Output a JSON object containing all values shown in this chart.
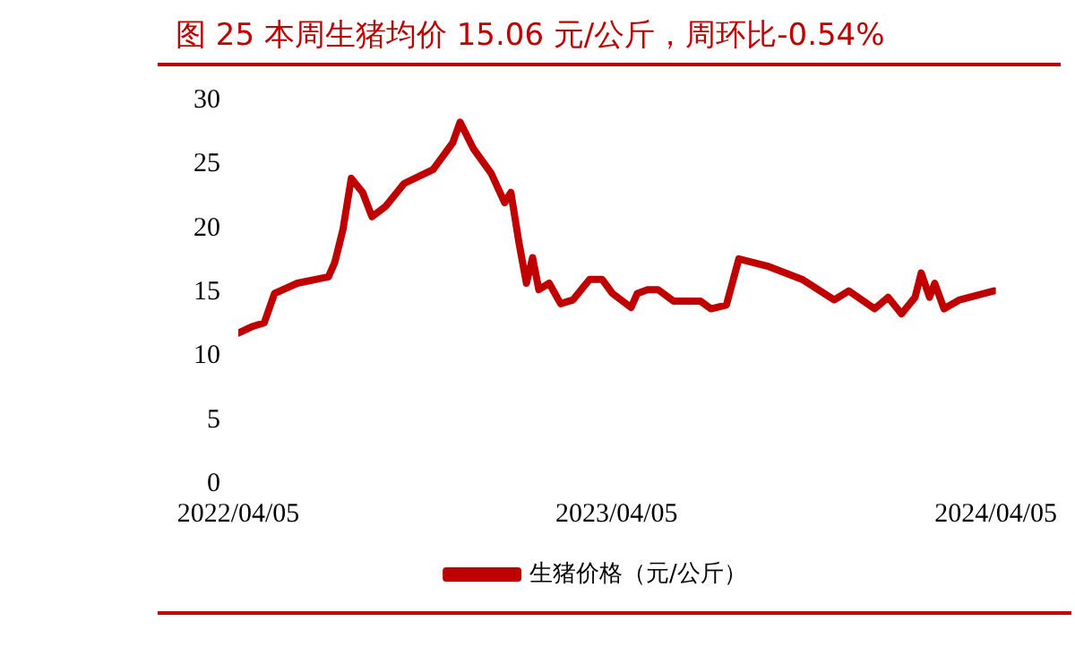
{
  "chart_data": {
    "type": "line",
    "title": "图 25  本周生猪均价 15.06 元/公斤，周环比-0.54%",
    "x": [
      "2022-04-05",
      "2022-04-18",
      "2022-04-30",
      "2022-05-10",
      "2022-06-01",
      "2022-07-01",
      "2022-07-07",
      "2022-07-15",
      "2022-07-23",
      "2022-08-03",
      "2022-08-12",
      "2022-08-25",
      "2022-09-12",
      "2022-10-10",
      "2022-10-29",
      "2022-11-05",
      "2022-11-18",
      "2022-12-05",
      "2022-12-18",
      "2022-12-24",
      "2023-01-01",
      "2023-01-08",
      "2023-01-14",
      "2023-01-20",
      "2023-01-30",
      "2023-02-10",
      "2023-02-22",
      "2023-03-10",
      "2023-03-22",
      "2023-04-01",
      "2023-04-19",
      "2023-04-25",
      "2023-05-05",
      "2023-05-15",
      "2023-05-30",
      "2023-06-25",
      "2023-07-05",
      "2023-07-20",
      "2023-08-01",
      "2023-08-30",
      "2023-10-01",
      "2023-11-01",
      "2023-11-15",
      "2023-12-10",
      "2023-12-23",
      "2024-01-05",
      "2024-01-18",
      "2024-01-24",
      "2024-02-01",
      "2024-02-06",
      "2024-02-15",
      "2024-03-01",
      "2024-04-03"
    ],
    "series": [
      {
        "name": "生猪价格（元/公斤）",
        "color": "#c00000",
        "values": [
          11.8,
          12.3,
          12.6,
          14.9,
          15.7,
          16.2,
          17.3,
          19.9,
          23.9,
          22.8,
          20.9,
          21.7,
          23.5,
          24.6,
          26.7,
          28.3,
          26.2,
          24.3,
          22.0,
          22.8,
          18.8,
          15.7,
          17.7,
          15.2,
          15.7,
          14.1,
          14.4,
          16.0,
          16.0,
          14.9,
          13.8,
          14.9,
          15.2,
          15.2,
          14.3,
          14.3,
          13.7,
          14.0,
          17.6,
          17.0,
          16.0,
          14.4,
          15.1,
          13.7,
          14.6,
          13.3,
          14.6,
          16.5,
          14.6,
          15.7,
          13.7,
          14.4,
          15.1
        ]
      }
    ],
    "xlim": [
      "2022-04-05",
      "2024-04-05"
    ],
    "xticks": [
      {
        "value": "2022-04-05",
        "label": "2022/04/05"
      },
      {
        "value": "2023-04-05",
        "label": "2023/04/05"
      },
      {
        "value": "2024-04-05",
        "label": "2024/04/05"
      }
    ],
    "ylim": [
      0,
      30
    ],
    "yticks": [
      0,
      5,
      10,
      15,
      20,
      25,
      30
    ],
    "grid": false,
    "legend": "bottom",
    "marker": "none",
    "line_style": "solid"
  }
}
